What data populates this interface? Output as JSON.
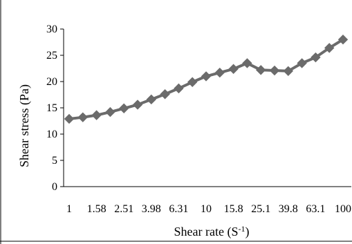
{
  "chart_data": {
    "type": "line",
    "title": "",
    "xlabel": "Shear rate (S",
    "xlabel_sup": "-1",
    "xlabel_close": ")",
    "ylabel": "Shear stress (Pa)",
    "ylim": [
      0,
      30
    ],
    "yticks": [
      0,
      5,
      10,
      15,
      20,
      25,
      30
    ],
    "xtick_labels": [
      "1",
      "1.58",
      "2.51",
      "3.98",
      "6.31",
      "10",
      "15.8",
      "25.1",
      "39.8",
      "63.1",
      "100"
    ],
    "grid": false,
    "legend": "none",
    "series": [
      {
        "color": "#6b6b6b",
        "marker": "diamond",
        "values": [
          12.9,
          13.2,
          13.6,
          14.2,
          14.9,
          15.6,
          16.6,
          17.6,
          18.7,
          19.9,
          21.0,
          21.7,
          22.4,
          23.5,
          22.2,
          22.1,
          22.0,
          23.5,
          24.6,
          26.4,
          28.0
        ]
      }
    ]
  }
}
